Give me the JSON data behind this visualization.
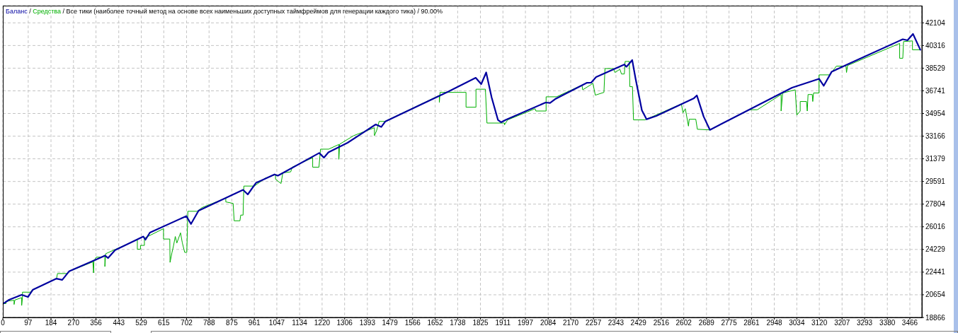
{
  "chart_data": {
    "type": "line",
    "annotations": [
      "/",
      "/ Все тики (наиболее точный метод на основе всех наименьших доступных таймфреймов для генерации каждого тика) / 90.00%"
    ],
    "legend": "top left",
    "grid": true,
    "xlim": [
      0,
      3512
    ],
    "xticks": [
      0,
      97,
      184,
      270,
      356,
      443,
      529,
      615,
      702,
      788,
      875,
      961,
      1047,
      1134,
      1220,
      1306,
      1393,
      1479,
      1566,
      1652,
      1738,
      1825,
      1911,
      1997,
      2084,
      2170,
      2257,
      2343,
      2429,
      2516,
      2602,
      2689,
      2775,
      2861,
      2948,
      3034,
      3120,
      3207,
      3293,
      3380,
      3466
    ],
    "ylim": [
      18866,
      43460
    ],
    "yticks": [
      18866,
      20654,
      22441,
      24229,
      26016,
      27804,
      29591,
      31379,
      33166,
      34954,
      36741,
      38529,
      40316,
      42104
    ],
    "series": [
      {
        "name": "Баланс",
        "color": "#0000a0",
        "x": [
          2,
          24,
          72,
          96,
          115,
          205,
          227,
          253,
          351,
          391,
          402,
          429,
          537,
          545,
          562,
          701,
          719,
          748,
          918,
          936,
          967,
          1038,
          1051,
          1209,
          1227,
          1244,
          1317,
          1425,
          1446,
          1462,
          1704,
          1807,
          1828,
          1847,
          1868,
          1892,
          1904,
          1922,
          2074,
          2091,
          2110,
          2231,
          2248,
          2267,
          2340,
          2375,
          2383,
          2405,
          2418,
          2442,
          2460,
          2497,
          2641,
          2652,
          2678,
          2702,
          3016,
          3119,
          3137,
          3167,
          3234,
          3439,
          3457,
          3478,
          3506
        ],
        "values": [
          19960,
          20260,
          20650,
          20480,
          21060,
          21930,
          21830,
          22500,
          23380,
          23740,
          23550,
          24180,
          25250,
          25000,
          25560,
          26860,
          26240,
          27290,
          28930,
          28570,
          29470,
          30150,
          30050,
          31840,
          31470,
          31890,
          32640,
          34090,
          33890,
          34330,
          36700,
          37770,
          37270,
          38190,
          36210,
          34450,
          34260,
          34450,
          35820,
          35780,
          36080,
          37370,
          37380,
          37830,
          38500,
          38820,
          38640,
          39170,
          37690,
          35210,
          34500,
          34760,
          36160,
          36380,
          34710,
          33660,
          36990,
          37690,
          37140,
          38240,
          38890,
          40810,
          40730,
          41230,
          39980
        ]
      },
      {
        "name": "Средства",
        "color": "#00b000",
        "x": [
          2,
          12,
          12,
          43,
          43,
          46,
          72,
          72,
          75,
          75,
          106,
          110,
          205,
          209,
          244,
          253,
          344,
          347,
          348,
          357,
          375,
          390,
          390,
          393,
          399,
          514,
          514,
          526,
          526,
          541,
          541,
          614,
          614,
          638,
          639,
          646,
          652,
          659,
          665,
          679,
          686,
          695,
          703,
          707,
          743,
          761,
          852,
          852,
          880,
          884,
          906,
          909,
          918,
          921,
          961,
          1003,
          1042,
          1042,
          1063,
          1070,
          1100,
          1106,
          1184,
          1184,
          1208,
          1214,
          1245,
          1284,
          1284,
          1287,
          1341,
          1420,
          1420,
          1428,
          1438,
          1460,
          1668,
          1668,
          1671,
          1770,
          1770,
          1808,
          1808,
          1844,
          1850,
          1917,
          1917,
          1929,
          2034,
          2037,
          2076,
          2076,
          2116,
          2213,
          2216,
          2255,
          2264,
          2297,
          2301,
          2333,
          2339,
          2358,
          2364,
          2375,
          2378,
          2394,
          2396,
          2406,
          2410,
          2454,
          2593,
          2599,
          2608,
          2620,
          2623,
          2648,
          2654,
          2702,
          2853,
          2883,
          2974,
          2974,
          2980,
          3028,
          3034,
          3047,
          3047,
          3071,
          3074,
          3077,
          3093,
          3095,
          3098,
          3119,
          3119,
          3160,
          3185,
          3222,
          3224,
          3228,
          3427,
          3427,
          3439,
          3442,
          3476,
          3476,
          3506
        ],
        "values": [
          19960,
          19960,
          20140,
          20220,
          19890,
          20240,
          20430,
          19810,
          20430,
          20860,
          20860,
          20990,
          21930,
          22330,
          22330,
          22500,
          23250,
          22380,
          23330,
          23620,
          23620,
          23770,
          22880,
          23890,
          23950,
          25000,
          24250,
          24250,
          24550,
          24550,
          25120,
          25870,
          25050,
          25050,
          23210,
          23950,
          24500,
          25250,
          24740,
          25540,
          24740,
          24000,
          24000,
          27240,
          27240,
          27530,
          28280,
          27980,
          27860,
          26490,
          26490,
          26940,
          26940,
          29230,
          29230,
          29850,
          30130,
          29770,
          29430,
          30270,
          30350,
          30720,
          31470,
          30720,
          30720,
          32140,
          32140,
          32510,
          31340,
          32530,
          33210,
          33830,
          33210,
          33590,
          34330,
          34330,
          36380,
          35830,
          36620,
          36620,
          35450,
          35450,
          36870,
          36870,
          34200,
          34200,
          34060,
          34450,
          35330,
          35150,
          35150,
          36270,
          36270,
          37190,
          36820,
          37330,
          36400,
          36620,
          38500,
          38500,
          38190,
          38440,
          38070,
          38070,
          39060,
          39060,
          37070,
          37070,
          34450,
          34450,
          35710,
          35010,
          35330,
          33960,
          34500,
          34500,
          33710,
          33660,
          35250,
          35250,
          36450,
          35150,
          36570,
          36820,
          34830,
          35150,
          35900,
          35900,
          35150,
          36450,
          36450,
          35900,
          36570,
          36570,
          38000,
          38000,
          38690,
          38690,
          38190,
          38740,
          40480,
          39310,
          39310,
          40630,
          40680,
          39980,
          39980
        ]
      }
    ]
  }
}
